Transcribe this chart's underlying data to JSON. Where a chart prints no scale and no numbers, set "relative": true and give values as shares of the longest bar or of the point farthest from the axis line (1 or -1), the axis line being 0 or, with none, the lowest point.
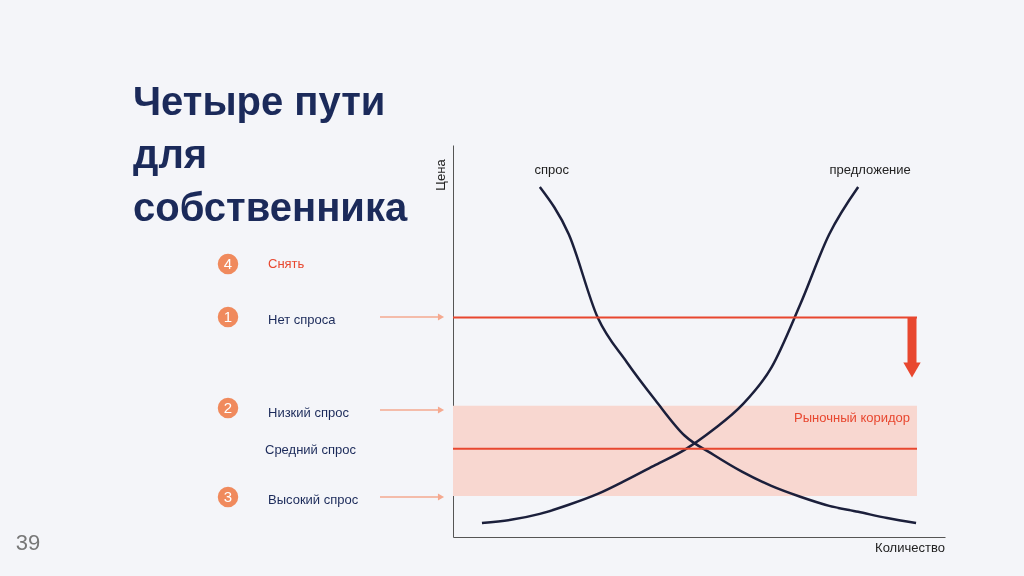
{
  "chart_data": {
    "type": "line",
    "relative": true,
    "title": "Четыре пути\nдля\nсобственника",
    "xlabel": "Количество",
    "ylabel": "Цена",
    "tick_labels": false,
    "grid": false,
    "marker": "none",
    "line_style": "solid",
    "categories": [
      null,
      null,
      null,
      null,
      null,
      null,
      null,
      null,
      null,
      null,
      null,
      null,
      null,
      null,
      null,
      null
    ],
    "series": [
      {
        "name": "спрос",
        "color": "#1b1f3b",
        "values": [
          null,
          null,
          1.0,
          0.865,
          0.627,
          0.5,
          0.39,
          0.29,
          0.235,
          0.186,
          0.146,
          0.115,
          0.089,
          0.072,
          0.054,
          0.04
        ]
      },
      {
        "name": "предложение",
        "color": "#1b1f3b",
        "values": [
          0.04,
          0.049,
          0.066,
          0.092,
          0.123,
          0.163,
          0.206,
          0.249,
          0.307,
          0.378,
          0.484,
          0.665,
          0.865,
          1.0,
          null,
          null
        ]
      }
    ],
    "ref_lines": [
      {
        "axis": "y",
        "value": 0.627,
        "color": "#e8472f",
        "line_style": "solid"
      },
      {
        "axis": "y",
        "value": 0.252,
        "color": "#e8472f",
        "line_style": "solid"
      }
    ],
    "bands": [
      {
        "axis": "y",
        "from": 0.117,
        "to": 0.375,
        "label": "Рыночный коридор",
        "color": "#f8d7d0"
      }
    ],
    "annotations": [
      "4",
      "Снять",
      "1",
      "Нет спроса",
      "2",
      "Низкий спрос",
      "Средний спрос",
      "3",
      "Высокий спрос",
      "39"
    ]
  }
}
